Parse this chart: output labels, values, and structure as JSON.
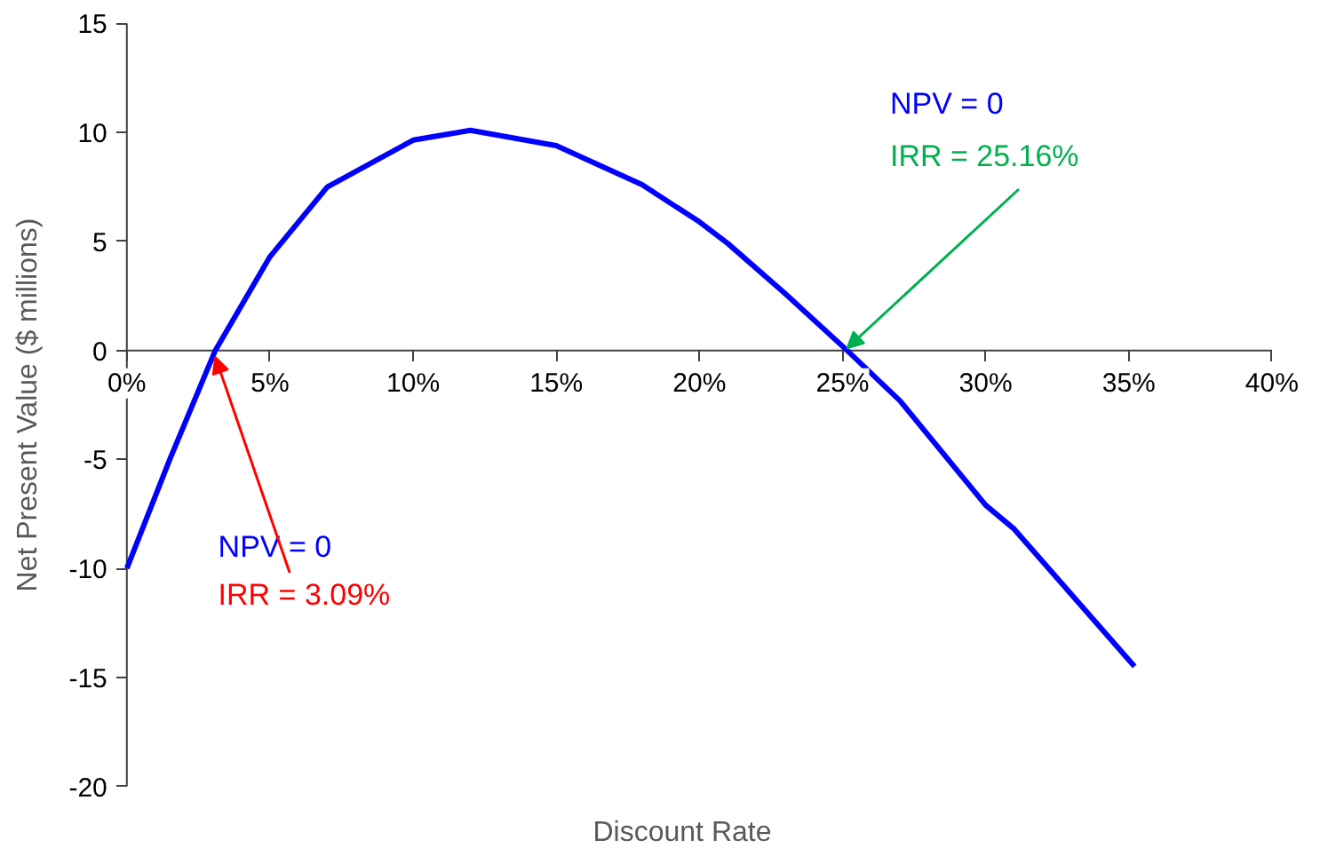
{
  "chart_data": {
    "type": "line",
    "xlabel": "Discount Rate",
    "ylabel": "Net Present Value ($ millions)",
    "x": [
      0,
      1.5,
      3.09,
      5,
      7,
      10,
      12,
      15,
      18,
      20,
      21,
      23,
      25.16,
      27,
      30,
      31,
      35.2
    ],
    "series": [
      {
        "color": "#0000ff",
        "values": [
          -10,
          -5,
          0,
          4.3,
          7.5,
          9.65,
          10.1,
          9.4,
          7.6,
          5.9,
          4.9,
          2.6,
          0,
          -2.3,
          -7.1,
          -8.2,
          -14.5
        ]
      }
    ],
    "xlim": [
      0,
      40
    ],
    "ylim": [
      -20,
      15
    ],
    "xticks": [
      {
        "value": 0,
        "label": "0%"
      },
      {
        "value": 5,
        "label": "5%"
      },
      {
        "value": 10,
        "label": "10%"
      },
      {
        "value": 15,
        "label": "15%"
      },
      {
        "value": 20,
        "label": "20%"
      },
      {
        "value": 25,
        "label": "25%"
      },
      {
        "value": 30,
        "label": "30%"
      },
      {
        "value": 35,
        "label": "35%"
      },
      {
        "value": 40,
        "label": "40%"
      }
    ],
    "yticks": [
      -20,
      -15,
      -10,
      -5,
      0,
      5,
      10,
      15
    ],
    "annotations": [
      "NPV = 0",
      {
        "text": "IRR = 3.09%",
        "x": 3.09,
        "y": 0
      },
      "NPV = 0",
      {
        "text": "IRR = 25.16%",
        "x": 25.16,
        "y": 0
      }
    ],
    "grid": false,
    "marker": "none",
    "line_style": "solid"
  }
}
